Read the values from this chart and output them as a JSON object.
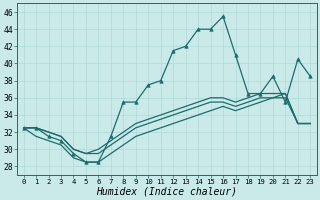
{
  "xlabel": "Humidex (Indice chaleur)",
  "xlim": [
    -0.5,
    23.5
  ],
  "ylim": [
    27,
    47
  ],
  "yticks": [
    28,
    30,
    32,
    34,
    36,
    38,
    40,
    42,
    44,
    46
  ],
  "xticks": [
    0,
    1,
    2,
    3,
    4,
    5,
    6,
    7,
    8,
    9,
    10,
    11,
    12,
    13,
    14,
    15,
    16,
    17,
    18,
    19,
    20,
    21,
    22,
    23
  ],
  "background_color": "#caeaea",
  "grid_color": "#b0d8d8",
  "line_color": "#1e6b6b",
  "series_main": [
    32.5,
    32.5,
    31.5,
    31.0,
    29.5,
    28.5,
    28.5,
    31.5,
    35.5,
    35.5,
    37.5,
    38.0,
    41.5,
    42.0,
    44.0,
    44.0,
    45.5,
    41.0,
    36.5,
    36.5,
    38.5,
    35.5,
    40.5,
    38.5
  ],
  "series_upper": [
    32.5,
    32.5,
    32.0,
    31.5,
    30.0,
    29.5,
    30.0,
    31.0,
    32.0,
    33.0,
    33.5,
    34.0,
    34.5,
    35.0,
    35.5,
    36.0,
    36.0,
    35.5,
    36.0,
    36.5,
    36.5,
    36.5,
    33.0,
    33.0
  ],
  "series_mid1": [
    32.5,
    32.5,
    32.0,
    31.5,
    30.0,
    29.5,
    29.5,
    30.5,
    31.5,
    32.5,
    33.0,
    33.5,
    34.0,
    34.5,
    35.0,
    35.5,
    35.5,
    35.0,
    35.5,
    36.0,
    36.0,
    36.5,
    33.0,
    33.0
  ],
  "series_lower": [
    32.5,
    31.5,
    31.0,
    30.5,
    29.0,
    28.5,
    28.5,
    29.5,
    30.5,
    31.5,
    32.0,
    32.5,
    33.0,
    33.5,
    34.0,
    34.5,
    35.0,
    34.5,
    35.0,
    35.5,
    36.0,
    36.0,
    33.0,
    33.0
  ]
}
